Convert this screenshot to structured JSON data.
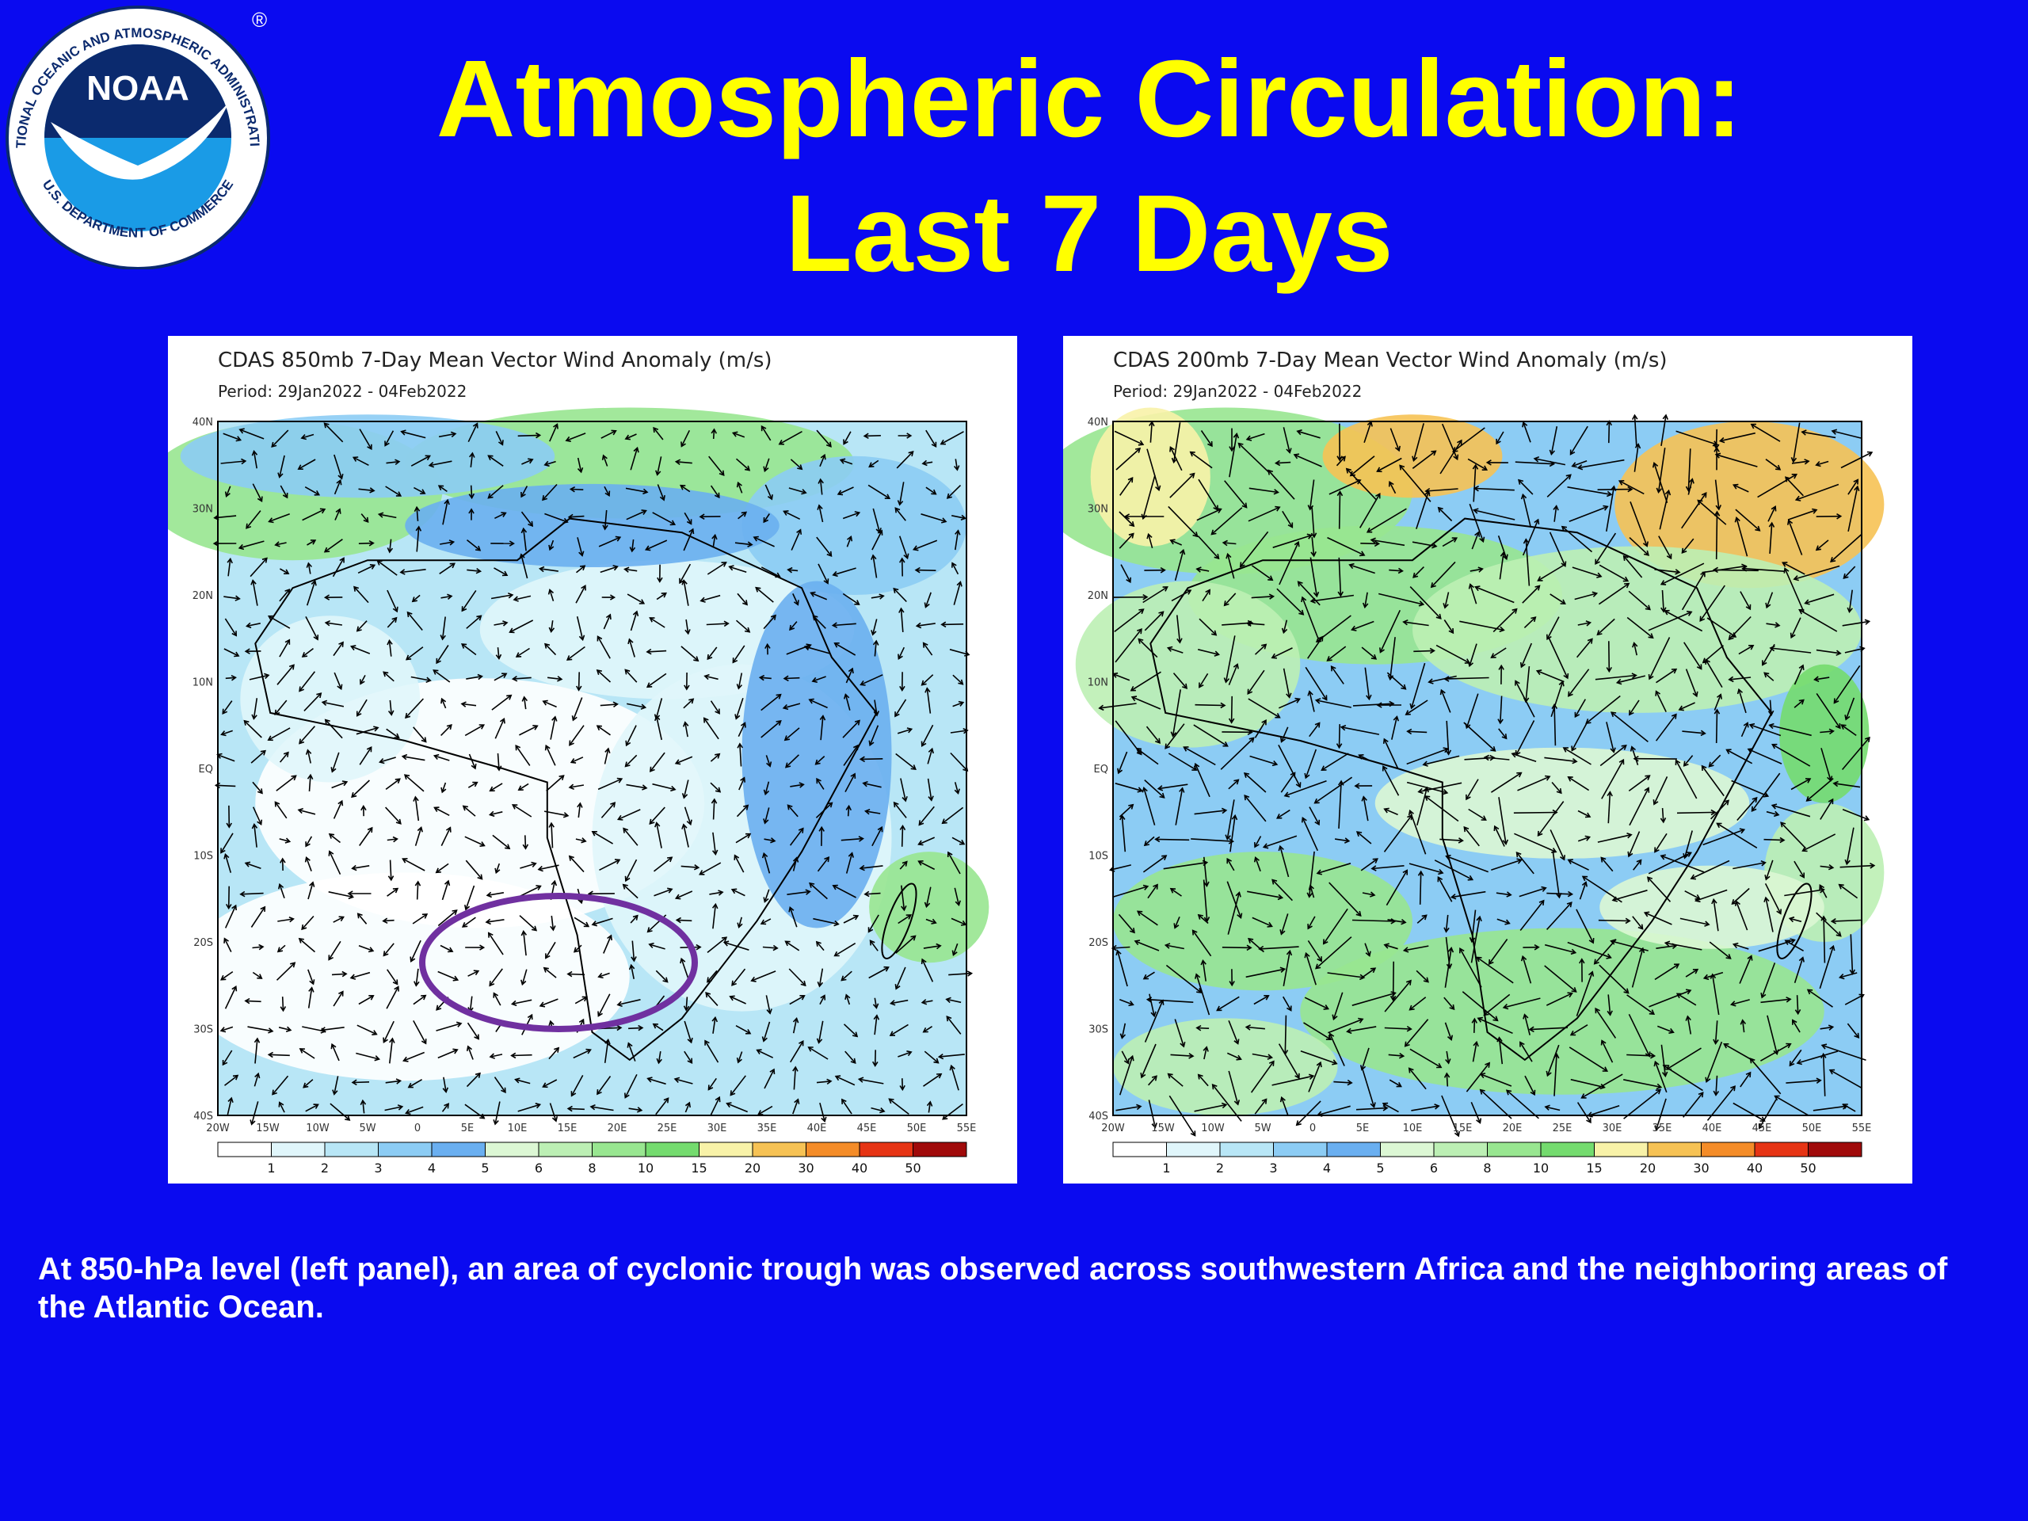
{
  "slide": {
    "title_line1": "Atmospheric Circulation:",
    "title_line2": "Last 7 Days",
    "caption": "At 850-hPa level (left panel), an area of cyclonic trough was observed across southwestern Africa and the neighboring areas of the Atlantic Ocean."
  },
  "logo": {
    "text": "NOAA",
    "ring_text": "NATIONAL OCEANIC AND ATMOSPHERIC ADMINISTRATION",
    "dept_text": "U.S. DEPARTMENT OF COMMERCE",
    "registered": "®"
  },
  "colors": {
    "background": "#0a0af0",
    "title": "#ffff00",
    "highlight_ellipse": "#7030a0"
  },
  "legend_labels": [
    "1",
    "2",
    "3",
    "4",
    "5",
    "6",
    "8",
    "10",
    "15",
    "20",
    "30",
    "40",
    "50"
  ],
  "legend_colors": [
    "#ffffff",
    "#e0f6fb",
    "#b8e6f6",
    "#8cccf4",
    "#6aaff0",
    "#dcf7d4",
    "#bcefb4",
    "#98e690",
    "#74db6e",
    "#f8f2a8",
    "#f6c254",
    "#f48c28",
    "#e63414",
    "#a00a0a"
  ],
  "lat_labels": [
    "40N",
    "30N",
    "20N",
    "10N",
    "EQ",
    "10S",
    "20S",
    "30S",
    "40S"
  ],
  "lon_labels": [
    "20W",
    "15W",
    "10W",
    "5W",
    "0",
    "5E",
    "10E",
    "15E",
    "20E",
    "25E",
    "30E",
    "35E",
    "40E",
    "45E",
    "50E",
    "55E"
  ],
  "panels": [
    {
      "title": "CDAS 850mb 7-Day Mean Vector Wind Anomaly (m/s)",
      "period": "Period: 29Jan2022 - 04Feb2022"
    },
    {
      "title": "CDAS 200mb 7-Day Mean Vector Wind Anomaly (m/s)",
      "period": "Period: 29Jan2022 - 04Feb2022"
    }
  ]
}
